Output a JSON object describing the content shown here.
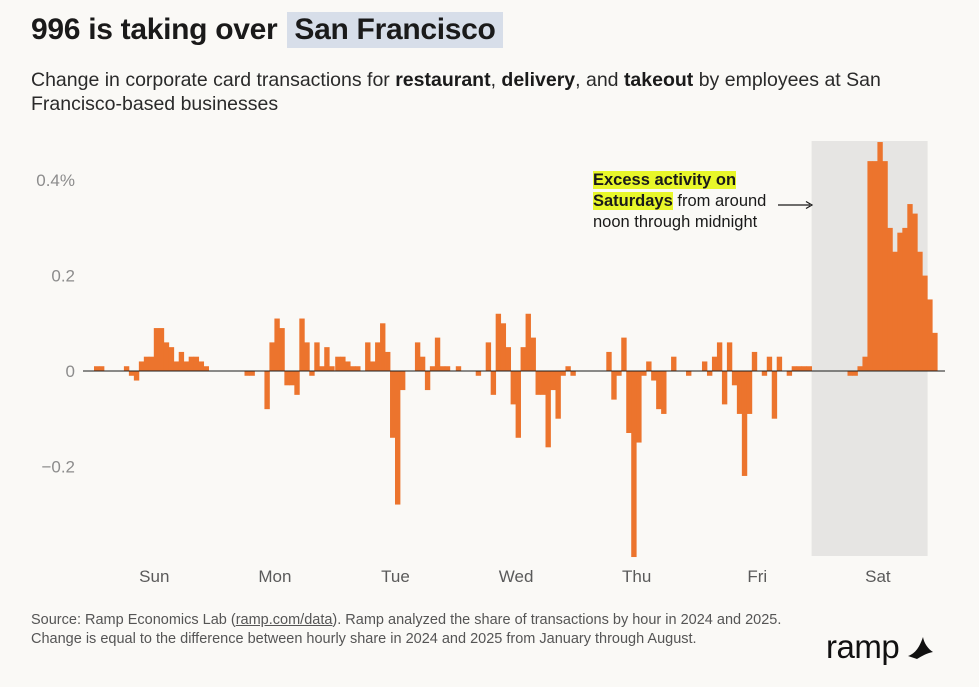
{
  "title": {
    "prefix": "996 is taking over",
    "highlight": "San Francisco"
  },
  "subtitle": {
    "p1": "Change in corporate card transactions for ",
    "b1": "restaurant",
    "p2": ", ",
    "b2": "delivery",
    "p3": ", and ",
    "b3": "takeout",
    "p4": " by employees at San Francisco-based businesses"
  },
  "annotation": {
    "highlight": "Excess activity on Saturdays",
    "rest": " from around noon through midnight"
  },
  "source": {
    "prefix": "Source: Ramp Economics Lab (",
    "link": "ramp.com/data",
    "suffix": "). Ramp analyzed the share of transactions by hour in 2024 and 2025. Change is equal to the difference between hourly share in 2024 and 2025 from January through August."
  },
  "logo": {
    "text": "ramp"
  },
  "colors": {
    "bar": "#ec742d",
    "highlight_band": "#e6e5e3",
    "title_highlight": "#d7dee9",
    "annotation_highlight": "#e8f72a"
  },
  "chart_data": {
    "type": "bar",
    "unit": "percentage points",
    "ylim": [
      -0.38,
      0.48
    ],
    "yticks": [
      {
        "value": 0.4,
        "label": "0.4%"
      },
      {
        "value": 0.2,
        "label": "0.2"
      },
      {
        "value": 0,
        "label": "0"
      },
      {
        "value": -0.2,
        "label": "−0.2"
      }
    ],
    "days": [
      "Sun",
      "Mon",
      "Tue",
      "Wed",
      "Thu",
      "Fri",
      "Sat"
    ],
    "highlighted_day": "Sat",
    "grid": false,
    "series": [
      {
        "day": "Sun",
        "values": [
          0.01,
          0.01,
          0,
          0,
          0,
          0,
          0.01,
          -0.01,
          -0.02,
          0.02,
          0.03,
          0.03,
          0.09,
          0.09,
          0.06,
          0.05,
          0.02,
          0.04,
          0.02,
          0.03,
          0.03,
          0.02,
          0.01,
          0
        ]
      },
      {
        "day": "Mon",
        "values": [
          0,
          0,
          0,
          0,
          0,
          0,
          -0.01,
          -0.01,
          0,
          0,
          -0.08,
          0.06,
          0.11,
          0.09,
          -0.03,
          -0.03,
          -0.05,
          0.11,
          0.06,
          -0.01,
          0.06,
          0.01,
          0.05,
          0.01
        ]
      },
      {
        "day": "Tue",
        "values": [
          0.03,
          0.03,
          0.02,
          0.01,
          0.01,
          0,
          0.06,
          0.02,
          0.06,
          0.1,
          0.04,
          -0.14,
          -0.28,
          -0.04,
          0,
          0,
          0.06,
          0.03,
          -0.04,
          0.01,
          0.07,
          0.01,
          0.01,
          0
        ]
      },
      {
        "day": "Wed",
        "values": [
          0.01,
          0,
          0,
          0,
          -0.01,
          0,
          0.06,
          -0.05,
          0.12,
          0.1,
          0.05,
          -0.07,
          -0.14,
          0.05,
          0.12,
          0.07,
          -0.05,
          -0.05,
          -0.16,
          -0.04,
          -0.1,
          -0.01,
          0.01,
          -0.01
        ]
      },
      {
        "day": "Thu",
        "values": [
          0,
          0,
          0,
          0,
          0,
          0,
          0.04,
          -0.06,
          -0.01,
          0.07,
          -0.13,
          -0.39,
          -0.15,
          -0.01,
          0.02,
          -0.02,
          -0.08,
          -0.09,
          0,
          0.03,
          0,
          0,
          -0.01,
          0
        ]
      },
      {
        "day": "Fri",
        "values": [
          0,
          0.02,
          -0.01,
          0.03,
          0.06,
          -0.07,
          0.06,
          -0.03,
          -0.09,
          -0.22,
          -0.09,
          0.04,
          0,
          -0.01,
          0.03,
          -0.1,
          0.03,
          0,
          -0.01,
          0.01,
          0.01,
          0.01,
          0.01,
          0
        ]
      },
      {
        "day": "Sat",
        "values": [
          0,
          0,
          0,
          0,
          0,
          0,
          -0.01,
          -0.01,
          0.01,
          0.03,
          0.44,
          0.44,
          0.48,
          0.44,
          0.3,
          0.25,
          0.29,
          0.3,
          0.35,
          0.33,
          0.25,
          0.2,
          0.15,
          0.08
        ]
      }
    ]
  }
}
